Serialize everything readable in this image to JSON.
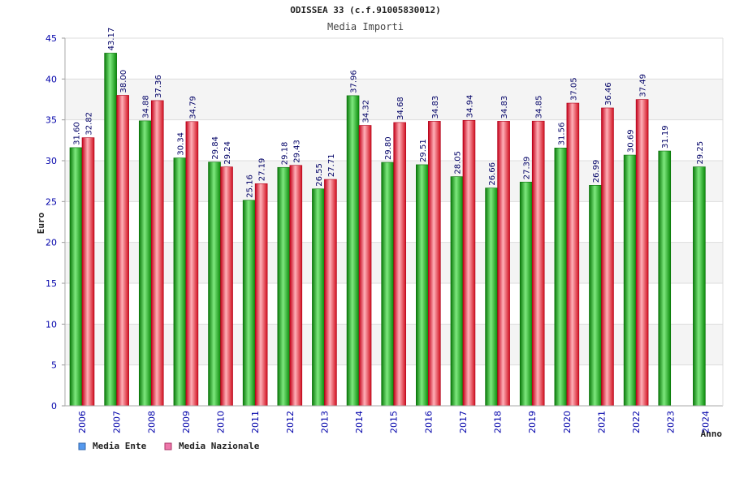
{
  "chart_data": {
    "type": "bar",
    "title": "ODISSEA 33 (c.f.91005830012)",
    "subtitle": "Media Importi",
    "xlabel": "Anno",
    "ylabel": "Euro",
    "ylim": [
      0,
      45
    ],
    "yticks": [
      "0",
      "5",
      "10",
      "15",
      "20",
      "25",
      "30",
      "35",
      "40",
      "45"
    ],
    "grid": "horizontal bands",
    "legend_position": "bottom-left",
    "categories": [
      "2006",
      "2007",
      "2008",
      "2009",
      "2010",
      "2011",
      "2012",
      "2013",
      "2014",
      "2015",
      "2016",
      "2017",
      "2018",
      "2019",
      "2020",
      "2021",
      "2022",
      "2023",
      "2024"
    ],
    "series": [
      {
        "name": "Media Ente",
        "legend_color": "#5599ee",
        "bar_color": "#11bb11",
        "values": [
          31.6,
          43.17,
          34.88,
          30.34,
          29.84,
          25.16,
          29.18,
          26.55,
          37.96,
          29.8,
          29.51,
          28.05,
          26.66,
          27.39,
          31.56,
          26.99,
          30.69,
          31.19,
          29.25
        ],
        "labels": [
          "31.60",
          "43.17",
          "34.88",
          "30.34",
          "29.84",
          "25.16",
          "29.18",
          "26.55",
          "37.96",
          "29.80",
          "29.51",
          "28.05",
          "26.66",
          "27.39",
          "31.56",
          "26.99",
          "30.69",
          "31.19",
          "29.25"
        ]
      },
      {
        "name": "Media Nazionale",
        "legend_color": "#ee77aa",
        "bar_color": "#ee2233",
        "values": [
          32.82,
          38.0,
          37.36,
          34.79,
          29.24,
          27.19,
          29.43,
          27.71,
          34.32,
          34.68,
          34.83,
          34.94,
          34.83,
          34.85,
          37.05,
          36.46,
          37.49,
          null,
          null
        ],
        "labels": [
          "32.82",
          "38.00",
          "37.36",
          "34.79",
          "29.24",
          "27.19",
          "29.43",
          "27.71",
          "34.32",
          "34.68",
          "34.83",
          "34.94",
          "34.83",
          "34.85",
          "37.05",
          "36.46",
          "37.49",
          null,
          null
        ]
      }
    ]
  }
}
